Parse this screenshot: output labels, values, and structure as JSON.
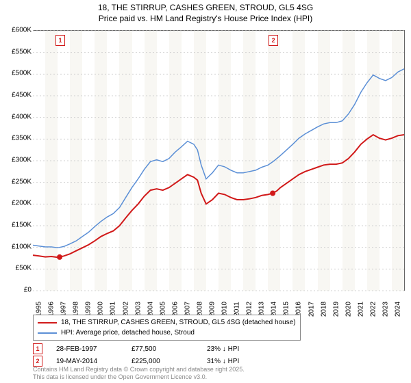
{
  "title_line1": "18, THE STIRRUP, CASHES GREEN, STROUD, GL5 4SG",
  "title_line2": "Price paid vs. HM Land Registry's House Price Index (HPI)",
  "chart": {
    "background_color": "#ffffff",
    "shade_color": "#eae7dc",
    "grid_color": "#d0d0d0",
    "axis_color": "#666666",
    "y": {
      "min": 0,
      "max": 600000,
      "ticks": [
        0,
        50000,
        100000,
        150000,
        200000,
        250000,
        300000,
        350000,
        400000,
        450000,
        500000,
        550000,
        600000
      ],
      "labels": [
        "£0",
        "£50K",
        "£100K",
        "£150K",
        "£200K",
        "£250K",
        "£300K",
        "£350K",
        "£400K",
        "£450K",
        "£500K",
        "£550K",
        "£600K"
      ]
    },
    "x": {
      "min": 1995,
      "max": 2025,
      "ticks": [
        1995,
        1996,
        1997,
        1998,
        1999,
        2000,
        2001,
        2002,
        2003,
        2004,
        2005,
        2006,
        2007,
        2008,
        2009,
        2010,
        2011,
        2012,
        2013,
        2014,
        2015,
        2016,
        2017,
        2018,
        2019,
        2020,
        2021,
        2022,
        2023,
        2024
      ],
      "shaded_years": [
        1996,
        1998,
        2000,
        2002,
        2004,
        2006,
        2008,
        2010,
        2012,
        2014,
        2016,
        2018,
        2020,
        2022,
        2024
      ]
    },
    "series": [
      {
        "name": "property",
        "label": "18, THE STIRRUP, CASHES GREEN, STROUD, GL5 4SG (detached house)",
        "color": "#d11919",
        "line_width": 2,
        "points": [
          [
            1995.0,
            82000
          ],
          [
            1995.5,
            80000
          ],
          [
            1996.0,
            78000
          ],
          [
            1996.5,
            79000
          ],
          [
            1997.0,
            77000
          ],
          [
            1997.16,
            77500
          ],
          [
            1997.5,
            80000
          ],
          [
            1998.0,
            85000
          ],
          [
            1998.5,
            92000
          ],
          [
            1999.0,
            99000
          ],
          [
            1999.5,
            106000
          ],
          [
            2000.0,
            115000
          ],
          [
            2000.5,
            125000
          ],
          [
            2001.0,
            132000
          ],
          [
            2001.5,
            138000
          ],
          [
            2002.0,
            150000
          ],
          [
            2002.5,
            168000
          ],
          [
            2003.0,
            185000
          ],
          [
            2003.5,
            200000
          ],
          [
            2004.0,
            218000
          ],
          [
            2004.5,
            232000
          ],
          [
            2005.0,
            235000
          ],
          [
            2005.5,
            232000
          ],
          [
            2006.0,
            238000
          ],
          [
            2006.5,
            248000
          ],
          [
            2007.0,
            258000
          ],
          [
            2007.5,
            268000
          ],
          [
            2008.0,
            262000
          ],
          [
            2008.3,
            255000
          ],
          [
            2008.6,
            225000
          ],
          [
            2009.0,
            200000
          ],
          [
            2009.5,
            210000
          ],
          [
            2010.0,
            225000
          ],
          [
            2010.5,
            222000
          ],
          [
            2011.0,
            215000
          ],
          [
            2011.5,
            210000
          ],
          [
            2012.0,
            210000
          ],
          [
            2012.5,
            212000
          ],
          [
            2013.0,
            215000
          ],
          [
            2013.5,
            220000
          ],
          [
            2014.0,
            222000
          ],
          [
            2014.38,
            225000
          ],
          [
            2014.7,
            230000
          ],
          [
            2015.0,
            238000
          ],
          [
            2015.5,
            248000
          ],
          [
            2016.0,
            258000
          ],
          [
            2016.5,
            268000
          ],
          [
            2017.0,
            275000
          ],
          [
            2017.5,
            280000
          ],
          [
            2018.0,
            285000
          ],
          [
            2018.5,
            290000
          ],
          [
            2019.0,
            292000
          ],
          [
            2019.5,
            292000
          ],
          [
            2020.0,
            295000
          ],
          [
            2020.5,
            305000
          ],
          [
            2021.0,
            320000
          ],
          [
            2021.5,
            338000
          ],
          [
            2022.0,
            350000
          ],
          [
            2022.5,
            360000
          ],
          [
            2023.0,
            352000
          ],
          [
            2023.5,
            348000
          ],
          [
            2024.0,
            352000
          ],
          [
            2024.5,
            358000
          ],
          [
            2025.0,
            360000
          ]
        ]
      },
      {
        "name": "hpi",
        "label": "HPI: Average price, detached house, Stroud",
        "color": "#5b8fd6",
        "line_width": 1.5,
        "points": [
          [
            1995.0,
            105000
          ],
          [
            1995.5,
            103000
          ],
          [
            1996.0,
            101000
          ],
          [
            1996.5,
            101000
          ],
          [
            1997.0,
            99000
          ],
          [
            1997.5,
            102000
          ],
          [
            1998.0,
            108000
          ],
          [
            1998.5,
            115000
          ],
          [
            1999.0,
            125000
          ],
          [
            1999.5,
            135000
          ],
          [
            2000.0,
            148000
          ],
          [
            2000.5,
            160000
          ],
          [
            2001.0,
            170000
          ],
          [
            2001.5,
            178000
          ],
          [
            2002.0,
            192000
          ],
          [
            2002.5,
            215000
          ],
          [
            2003.0,
            238000
          ],
          [
            2003.5,
            258000
          ],
          [
            2004.0,
            280000
          ],
          [
            2004.5,
            298000
          ],
          [
            2005.0,
            302000
          ],
          [
            2005.5,
            298000
          ],
          [
            2006.0,
            305000
          ],
          [
            2006.5,
            320000
          ],
          [
            2007.0,
            332000
          ],
          [
            2007.5,
            345000
          ],
          [
            2008.0,
            338000
          ],
          [
            2008.3,
            325000
          ],
          [
            2008.6,
            290000
          ],
          [
            2009.0,
            258000
          ],
          [
            2009.5,
            272000
          ],
          [
            2010.0,
            290000
          ],
          [
            2010.5,
            286000
          ],
          [
            2011.0,
            278000
          ],
          [
            2011.5,
            272000
          ],
          [
            2012.0,
            272000
          ],
          [
            2012.5,
            275000
          ],
          [
            2013.0,
            278000
          ],
          [
            2013.5,
            285000
          ],
          [
            2014.0,
            290000
          ],
          [
            2014.5,
            300000
          ],
          [
            2015.0,
            312000
          ],
          [
            2015.5,
            325000
          ],
          [
            2016.0,
            338000
          ],
          [
            2016.5,
            352000
          ],
          [
            2017.0,
            362000
          ],
          [
            2017.5,
            370000
          ],
          [
            2018.0,
            378000
          ],
          [
            2018.5,
            385000
          ],
          [
            2019.0,
            388000
          ],
          [
            2019.5,
            388000
          ],
          [
            2020.0,
            392000
          ],
          [
            2020.5,
            408000
          ],
          [
            2021.0,
            430000
          ],
          [
            2021.5,
            458000
          ],
          [
            2022.0,
            480000
          ],
          [
            2022.5,
            498000
          ],
          [
            2023.0,
            490000
          ],
          [
            2023.5,
            485000
          ],
          [
            2024.0,
            492000
          ],
          [
            2024.5,
            505000
          ],
          [
            2025.0,
            512000
          ]
        ]
      }
    ],
    "sale_markers": [
      {
        "n": "1",
        "year": 1997.16,
        "value": 77500,
        "color": "#d11919"
      },
      {
        "n": "2",
        "year": 2014.38,
        "value": 225000,
        "color": "#d11919"
      }
    ]
  },
  "legend": {
    "items": [
      {
        "color": "#d11919",
        "label_path": "chart.series.0.label"
      },
      {
        "color": "#5b8fd6",
        "label_path": "chart.series.1.label"
      }
    ]
  },
  "sales": [
    {
      "n": "1",
      "color": "#d11919",
      "date": "28-FEB-1997",
      "price": "£77,500",
      "hpi": "23% ↓ HPI"
    },
    {
      "n": "2",
      "color": "#d11919",
      "date": "19-MAY-2014",
      "price": "£225,000",
      "hpi": "31% ↓ HPI"
    }
  ],
  "footer_line1": "Contains HM Land Registry data © Crown copyright and database right 2025.",
  "footer_line2": "This data is licensed under the Open Government Licence v3.0."
}
